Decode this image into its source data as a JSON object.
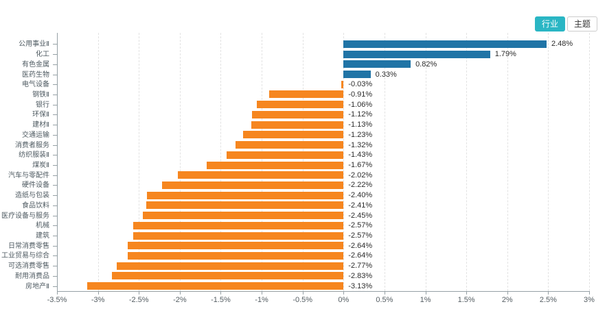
{
  "toolbar": {
    "buttons": [
      {
        "label": "行业",
        "active": true
      },
      {
        "label": "主题",
        "active": false
      }
    ]
  },
  "colors": {
    "accent_teal": "#2AB6C4",
    "positive_bar": "#2074A6",
    "negative_bar": "#F6861F",
    "grid": "#e2e2e2",
    "axis": "#95a0a5"
  },
  "chart_data": {
    "type": "bar",
    "orientation": "horizontal",
    "title": "",
    "xlabel": "",
    "ylabel": "",
    "categories": [
      "公用事业Ⅱ",
      "化工",
      "有色金属",
      "医药生物",
      "电气设备",
      "钢铁Ⅱ",
      "银行",
      "环保Ⅱ",
      "建材Ⅱ",
      "交通运输",
      "消费者服务",
      "纺织服装Ⅱ",
      "煤炭Ⅱ",
      "汽车与零配件",
      "硬件设备",
      "造纸与包装",
      "食品饮料",
      "医疗设备与服务",
      "机械",
      "建筑",
      "日常消费零售",
      "工业贸易与综合",
      "可选消费零售",
      "耐用消费品",
      "房地产Ⅱ"
    ],
    "values": [
      2.48,
      1.79,
      0.82,
      0.33,
      -0.03,
      -0.91,
      -1.06,
      -1.12,
      -1.13,
      -1.23,
      -1.32,
      -1.43,
      -1.67,
      -2.02,
      -2.22,
      -2.4,
      -2.41,
      -2.45,
      -2.57,
      -2.57,
      -2.64,
      -2.64,
      -2.77,
      -2.83,
      -3.13
    ],
    "value_labels": [
      "2.48%",
      "1.79%",
      "0.82%",
      "0.33%",
      "-0.03%",
      "-0.91%",
      "-1.06%",
      "-1.12%",
      "-1.13%",
      "-1.23%",
      "-1.32%",
      "-1.43%",
      "-1.67%",
      "-2.02%",
      "-2.22%",
      "-2.40%",
      "-2.41%",
      "-2.45%",
      "-2.57%",
      "-2.57%",
      "-2.64%",
      "-2.64%",
      "-2.77%",
      "-2.83%",
      "-3.13%"
    ],
    "axis": {
      "min": -3.5,
      "max": 3,
      "step": 0.5,
      "tick_labels": [
        "-3.5%",
        "-3%",
        "-2.5%",
        "-2%",
        "-1.5%",
        "-1%",
        "-0.5%",
        "0%",
        "0.5%",
        "1%",
        "1.5%",
        "2%",
        "2.5%",
        "3%"
      ]
    },
    "grid": true,
    "legend": null
  }
}
